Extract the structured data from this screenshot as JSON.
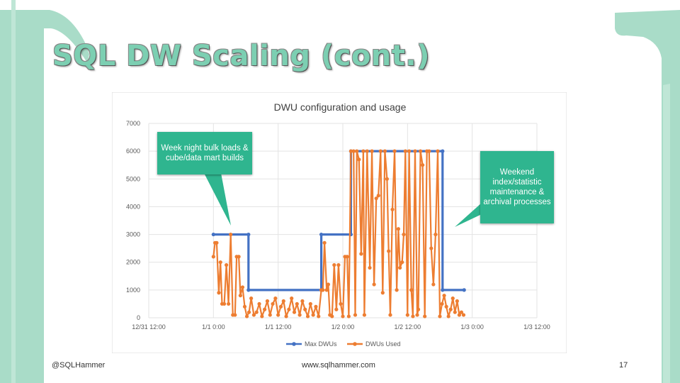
{
  "slide": {
    "title": "SQL DW Scaling (cont.)",
    "footer_left": "@SQLHammer",
    "footer_center": "www.sqlhammer.com",
    "page_number": "17",
    "accent_color": "#a9dcc8"
  },
  "callouts": [
    {
      "text": "Week night bulk loads & cube/data mart builds"
    },
    {
      "text": "Weekend index/statistic maintenance & archival processes"
    }
  ],
  "chart_data": {
    "type": "line",
    "title": "DWU configuration and usage",
    "xlabel": "",
    "ylabel": "",
    "ylim": [
      0,
      7000
    ],
    "yticks": [
      "0",
      "1000",
      "2000",
      "3000",
      "4000",
      "5000",
      "6000",
      "7000"
    ],
    "xticks": [
      "12/31 12:00",
      "1/1 0:00",
      "1/1 12:00",
      "1/2 0:00",
      "1/2 12:00",
      "1/3 0:00",
      "1/3 12:00"
    ],
    "xlim_hours": [
      0,
      72
    ],
    "grid": true,
    "legend_position": "bottom",
    "colors": {
      "max": "#4472c4",
      "used": "#ed7d31"
    },
    "series": [
      {
        "name": "Max DWUs",
        "points": [
          [
            12,
            3000
          ],
          [
            18.5,
            3000
          ],
          [
            18.5,
            1000
          ],
          [
            32,
            1000
          ],
          [
            32,
            3000
          ],
          [
            37.5,
            3000
          ],
          [
            37.5,
            6000
          ],
          [
            54.5,
            6000
          ],
          [
            54.5,
            1000
          ],
          [
            58.5,
            1000
          ]
        ]
      },
      {
        "name": "DWUs Used",
        "points": [
          [
            12,
            2200
          ],
          [
            12.3,
            2700
          ],
          [
            12.6,
            2700
          ],
          [
            13,
            900
          ],
          [
            13.3,
            2000
          ],
          [
            13.6,
            500
          ],
          [
            14,
            500
          ],
          [
            14.4,
            1900
          ],
          [
            14.8,
            500
          ],
          [
            15.2,
            3000
          ],
          [
            15.6,
            100
          ],
          [
            16,
            100
          ],
          [
            16.3,
            2200
          ],
          [
            16.7,
            2200
          ],
          [
            17,
            800
          ],
          [
            17.4,
            1100
          ],
          [
            17.8,
            400
          ],
          [
            18.2,
            50
          ],
          [
            18.6,
            200
          ],
          [
            19,
            700
          ],
          [
            19.5,
            100
          ],
          [
            20,
            200
          ],
          [
            20.5,
            500
          ],
          [
            21,
            50
          ],
          [
            21.5,
            300
          ],
          [
            22,
            600
          ],
          [
            22.5,
            100
          ],
          [
            23,
            500
          ],
          [
            23.5,
            700
          ],
          [
            24,
            100
          ],
          [
            24.5,
            400
          ],
          [
            25,
            600
          ],
          [
            25.5,
            50
          ],
          [
            26,
            300
          ],
          [
            26.5,
            700
          ],
          [
            27,
            200
          ],
          [
            27.5,
            500
          ],
          [
            28,
            100
          ],
          [
            28.5,
            600
          ],
          [
            29,
            300
          ],
          [
            29.5,
            50
          ],
          [
            30,
            500
          ],
          [
            30.5,
            100
          ],
          [
            31,
            400
          ],
          [
            31.5,
            50
          ],
          [
            32,
            1000
          ],
          [
            32.3,
            1000
          ],
          [
            32.6,
            2700
          ],
          [
            33,
            1000
          ],
          [
            33.3,
            1200
          ],
          [
            33.6,
            100
          ],
          [
            34,
            50
          ],
          [
            34.4,
            1900
          ],
          [
            34.8,
            300
          ],
          [
            35.2,
            1900
          ],
          [
            35.6,
            500
          ],
          [
            36,
            50
          ],
          [
            36.4,
            2200
          ],
          [
            36.8,
            2200
          ],
          [
            37.1,
            50
          ],
          [
            37.5,
            6000
          ],
          [
            38,
            6000
          ],
          [
            38.3,
            100
          ],
          [
            38.6,
            6000
          ],
          [
            39,
            5700
          ],
          [
            39.4,
            2300
          ],
          [
            39.8,
            6000
          ],
          [
            40,
            100
          ],
          [
            40.5,
            6000
          ],
          [
            41,
            1800
          ],
          [
            41.4,
            6000
          ],
          [
            41.8,
            1200
          ],
          [
            42.2,
            4300
          ],
          [
            42.6,
            4400
          ],
          [
            43,
            6000
          ],
          [
            43.4,
            900
          ],
          [
            43.8,
            6000
          ],
          [
            44.2,
            5000
          ],
          [
            44.5,
            2400
          ],
          [
            44.8,
            100
          ],
          [
            45.2,
            3900
          ],
          [
            45.6,
            6000
          ],
          [
            46,
            1000
          ],
          [
            46.3,
            3200
          ],
          [
            46.6,
            1800
          ],
          [
            47,
            2000
          ],
          [
            47.3,
            3000
          ],
          [
            47.6,
            6000
          ],
          [
            48,
            100
          ],
          [
            48.3,
            6000
          ],
          [
            48.7,
            1000
          ],
          [
            49,
            50
          ],
          [
            49.4,
            6000
          ],
          [
            49.8,
            100
          ],
          [
            50,
            300
          ],
          [
            50.4,
            6000
          ],
          [
            50.8,
            5500
          ],
          [
            51.2,
            50
          ],
          [
            51.6,
            6000
          ],
          [
            52,
            6000
          ],
          [
            52.4,
            2500
          ],
          [
            52.8,
            1200
          ],
          [
            53.2,
            3000
          ],
          [
            53.6,
            6000
          ],
          [
            54,
            50
          ],
          [
            54.4,
            500
          ],
          [
            54.8,
            800
          ],
          [
            55.2,
            400
          ],
          [
            55.6,
            50
          ],
          [
            56,
            300
          ],
          [
            56.4,
            700
          ],
          [
            56.8,
            200
          ],
          [
            57.2,
            600
          ],
          [
            57.6,
            100
          ],
          [
            58,
            200
          ],
          [
            58.4,
            100
          ]
        ]
      }
    ]
  }
}
